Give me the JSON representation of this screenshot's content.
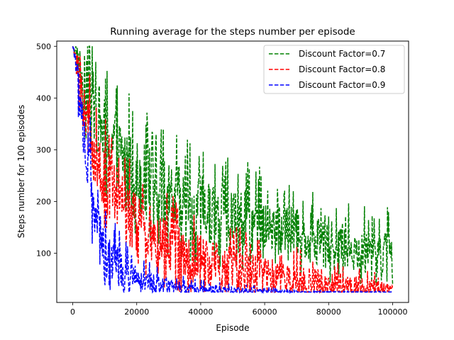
{
  "chart_data": {
    "type": "line",
    "title": "Running average for the steps number per episode",
    "xlabel": "Episode",
    "ylabel": "Steps number for 100 episodes",
    "xlim": [
      -5000,
      105000
    ],
    "ylim": [
      5,
      510
    ],
    "xticks": [
      0,
      20000,
      40000,
      60000,
      80000,
      100000
    ],
    "xtick_labels": [
      "0",
      "20000",
      "40000",
      "60000",
      "80000",
      "100000"
    ],
    "yticks": [
      100,
      200,
      300,
      400,
      500
    ],
    "ytick_labels": [
      "100",
      "200",
      "300",
      "400",
      "500"
    ],
    "grid": false,
    "legend_position": "top-right",
    "series": [
      {
        "name": "Discount Factor=0.7",
        "color": "#008000",
        "linestyle": "dashed",
        "x": [
          0,
          2000,
          4000,
          6000,
          8000,
          10000,
          15000,
          20000,
          25000,
          30000,
          35000,
          40000,
          45000,
          50000,
          55000,
          60000,
          65000,
          70000,
          75000,
          80000,
          85000,
          90000,
          95000,
          100000
        ],
        "y": [
          500,
          470,
          420,
          390,
          360,
          330,
          290,
          250,
          230,
          205,
          195,
          185,
          175,
          168,
          160,
          152,
          145,
          138,
          130,
          122,
          115,
          110,
          105,
          100
        ],
        "noise": [
          0,
          30,
          60,
          70,
          70,
          75,
          75,
          75,
          70,
          70,
          70,
          65,
          65,
          60,
          60,
          55,
          55,
          50,
          50,
          50,
          45,
          45,
          45,
          45
        ],
        "floor": 25
      },
      {
        "name": "Discount Factor=0.8",
        "color": "#ff0000",
        "linestyle": "dashed",
        "x": [
          0,
          2000,
          4000,
          6000,
          8000,
          10000,
          15000,
          20000,
          25000,
          30000,
          35000,
          40000,
          45000,
          50000,
          55000,
          60000,
          65000,
          70000,
          75000,
          80000,
          85000,
          90000,
          95000,
          100000
        ],
        "y": [
          500,
          440,
          360,
          310,
          270,
          240,
          195,
          160,
          130,
          110,
          95,
          85,
          78,
          70,
          62,
          55,
          50,
          45,
          42,
          40,
          38,
          35,
          33,
          30
        ],
        "noise": [
          0,
          40,
          60,
          65,
          65,
          65,
          60,
          60,
          55,
          55,
          50,
          50,
          45,
          45,
          40,
          40,
          35,
          35,
          30,
          30,
          25,
          20,
          15,
          10
        ],
        "floor": 25
      },
      {
        "name": "Discount Factor=0.9",
        "color": "#0000ff",
        "linestyle": "dashed",
        "x": [
          0,
          2000,
          4000,
          6000,
          8000,
          10000,
          15000,
          20000,
          25000,
          30000,
          35000,
          40000,
          45000,
          50000,
          55000,
          60000,
          65000,
          70000,
          75000,
          80000,
          85000,
          90000,
          95000,
          100000
        ],
        "y": [
          500,
          420,
          300,
          220,
          160,
          110,
          70,
          50,
          40,
          35,
          32,
          30,
          28,
          28,
          27,
          26,
          26,
          25,
          25,
          25,
          25,
          25,
          25,
          25
        ],
        "noise": [
          0,
          50,
          70,
          70,
          60,
          50,
          35,
          25,
          20,
          15,
          12,
          10,
          8,
          8,
          6,
          5,
          4,
          3,
          2,
          2,
          1,
          1,
          1,
          1
        ],
        "floor": 25
      }
    ]
  }
}
